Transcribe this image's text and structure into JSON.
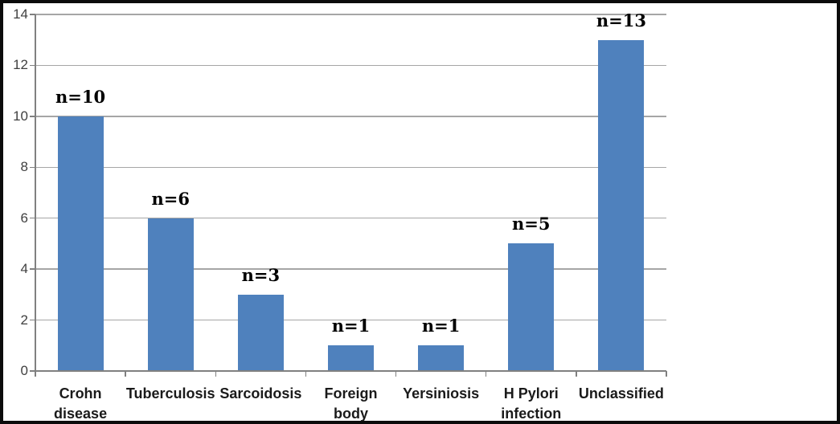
{
  "chart_data": {
    "type": "bar",
    "title": "",
    "xlabel": "",
    "ylabel": "",
    "categories": [
      "Crohn disease",
      "Tuberculosis",
      "Sarcoidosis",
      "Foreign body",
      "Yersiniosis",
      "H Pylori infection",
      "Unclassified"
    ],
    "category_labels_display": [
      "Crohn\ndisease",
      "Tuberculosis",
      "Sarcoidosis",
      "Foreign\nbody",
      "Yersiniosis",
      "H Pylori\ninfection",
      "Unclassified"
    ],
    "values": [
      10,
      6,
      3,
      1,
      1,
      5,
      13
    ],
    "data_labels": [
      "n=10",
      "n=6",
      "n=3",
      "n=1",
      "n=1",
      "n=5",
      "n=13"
    ],
    "ylim": [
      0,
      14
    ],
    "yticks": [
      0,
      2,
      4,
      6,
      8,
      10,
      12,
      14
    ],
    "ytick_labels": [
      "0",
      "2",
      "4",
      "6",
      "8",
      "10",
      "12",
      "14"
    ],
    "grid": true,
    "legend": "none",
    "colors": {
      "bar": "#4F81BD",
      "gridline": "#A6A6A6",
      "axis": "#808080",
      "ytick_label": "#3F3F3F",
      "category_label": "#1A1A1A",
      "data_label": "#000000",
      "background": "#FFFFFF",
      "frame_border": "#0B0B0B"
    }
  }
}
